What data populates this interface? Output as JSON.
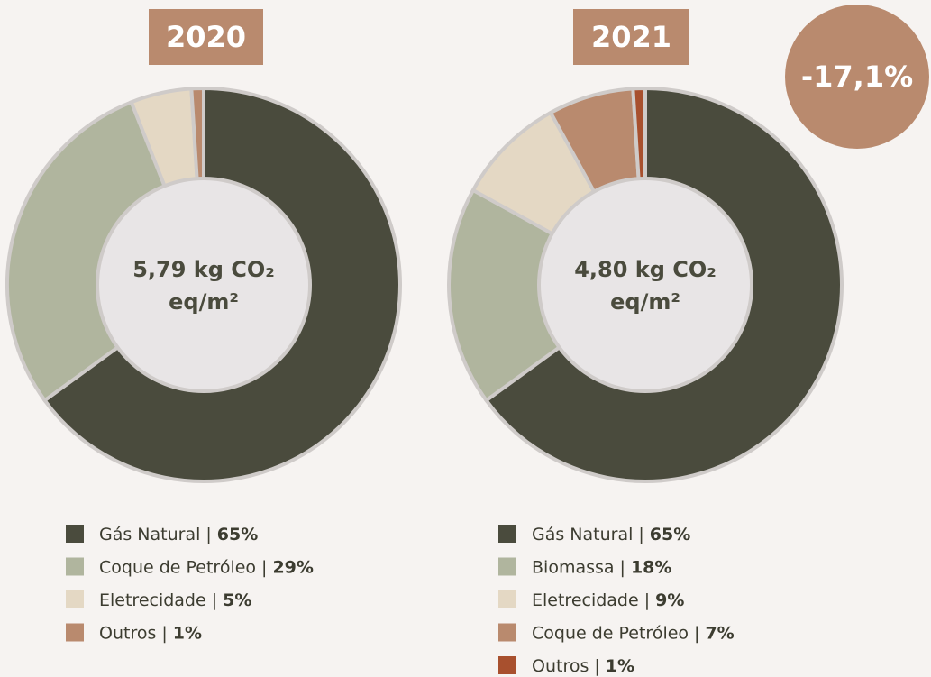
{
  "chart_data": [
    {
      "type": "pie",
      "title": "2020",
      "center_label": [
        "5,79 kg CO₂",
        "eq/m²"
      ],
      "categories": [
        "Gás Natural",
        "Coque de Petróleo",
        "Eletrecidade",
        "Outros"
      ],
      "values": [
        65,
        29,
        5,
        1
      ],
      "value_labels": [
        "65%",
        "29%",
        "5%",
        "1%"
      ],
      "colors": [
        "#4a4b3d",
        "#b0b59e",
        "#e4d8c4",
        "#b98a6e"
      ],
      "legend_separator": "|"
    },
    {
      "type": "pie",
      "title": "2021",
      "center_label": [
        "4,80 kg CO₂",
        "eq/m²"
      ],
      "categories": [
        "Gás Natural",
        "Biomassa",
        "Eletrecidade",
        "Coque de Petróleo",
        "Outros"
      ],
      "values": [
        65,
        18,
        9,
        7,
        1
      ],
      "value_labels": [
        "65%",
        "18%",
        "9%",
        "7%",
        "1%"
      ],
      "colors": [
        "#4a4b3d",
        "#b0b59e",
        "#e4d8c4",
        "#b98a6e",
        "#a8502e"
      ],
      "legend_separator": "|",
      "annotation": "-17,1%"
    }
  ]
}
